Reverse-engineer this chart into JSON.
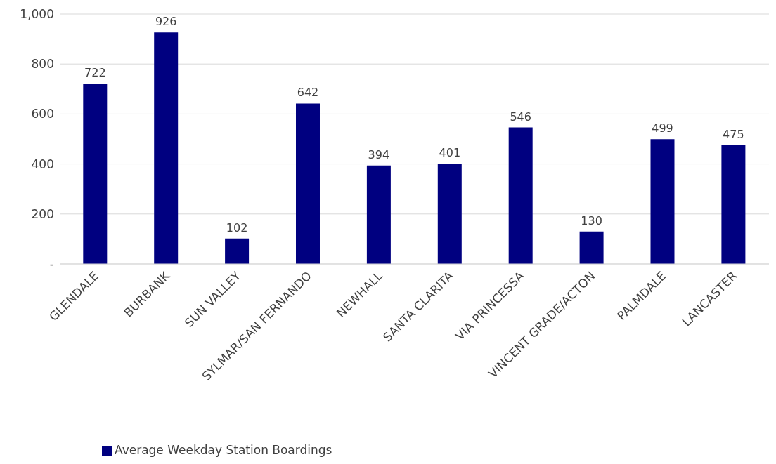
{
  "chart_data": {
    "type": "bar",
    "categories": [
      "GLENDALE",
      "BURBANK",
      "SUN VALLEY",
      "SYLMAR/SAN FERNANDO",
      "NEWHALL",
      "SANTA CLARITA",
      "VIA PRINCESSA",
      "VINCENT GRADE/ACTON",
      "PALMDALE",
      "LANCASTER"
    ],
    "series": [
      {
        "name": "Average Weekday Station Boardings",
        "color": "#000080",
        "values": [
          722,
          926,
          102,
          642,
          394,
          401,
          546,
          130,
          499,
          475
        ]
      }
    ],
    "ylim": [
      0,
      1000
    ],
    "yticks": [
      {
        "value": 0,
        "label": "-"
      },
      200,
      400,
      600,
      800,
      {
        "value": 1000,
        "label": "1,000"
      }
    ],
    "grid": "y",
    "legend": "bottom left",
    "data_labels": true
  }
}
